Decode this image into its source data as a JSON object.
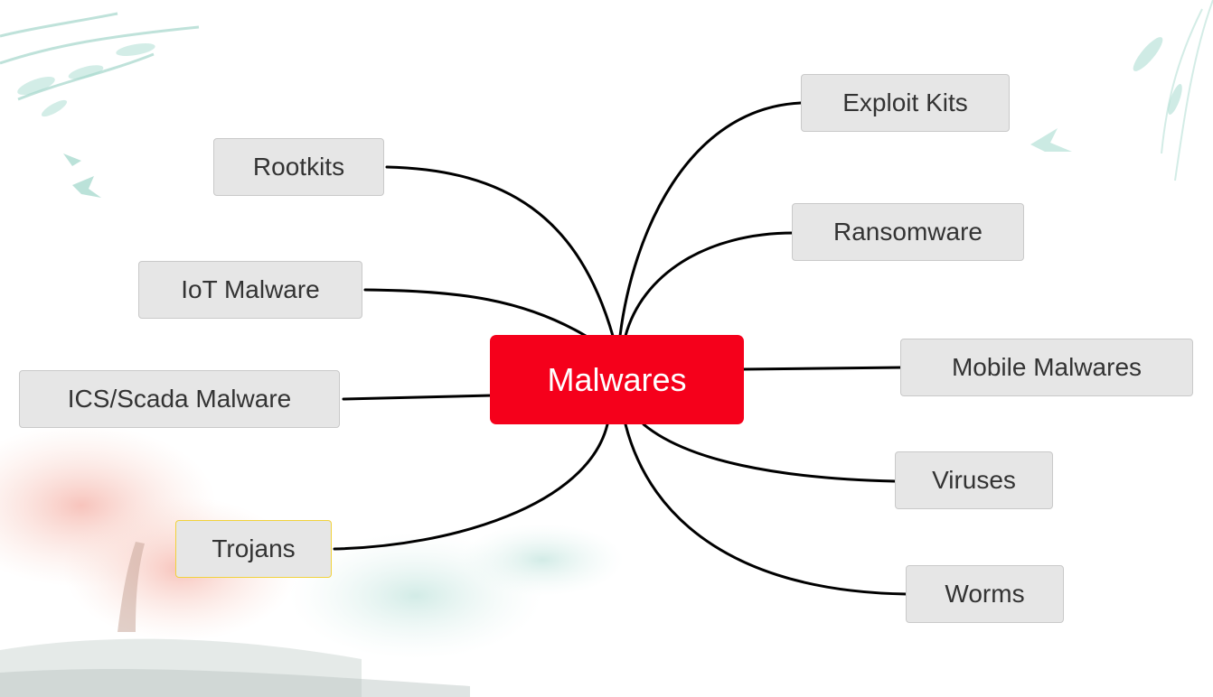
{
  "diagram": {
    "center": {
      "label": "Malwares",
      "color": "#f5001b"
    },
    "branches": [
      {
        "id": "rootkits",
        "label": "Rootkits"
      },
      {
        "id": "iot",
        "label": "IoT Malware"
      },
      {
        "id": "ics",
        "label": "ICS/Scada Malware"
      },
      {
        "id": "trojans",
        "label": "Trojans",
        "selected": true
      },
      {
        "id": "exploit",
        "label": "Exploit Kits"
      },
      {
        "id": "ransomware",
        "label": "Ransomware"
      },
      {
        "id": "mobile",
        "label": "Mobile Malwares"
      },
      {
        "id": "viruses",
        "label": "Viruses"
      },
      {
        "id": "worms",
        "label": "Worms"
      }
    ],
    "colors": {
      "node_fill": "#e6e6e6",
      "node_border": "#c9c9c9",
      "selected_border": "#f1d23c",
      "connector": "#000000"
    }
  }
}
